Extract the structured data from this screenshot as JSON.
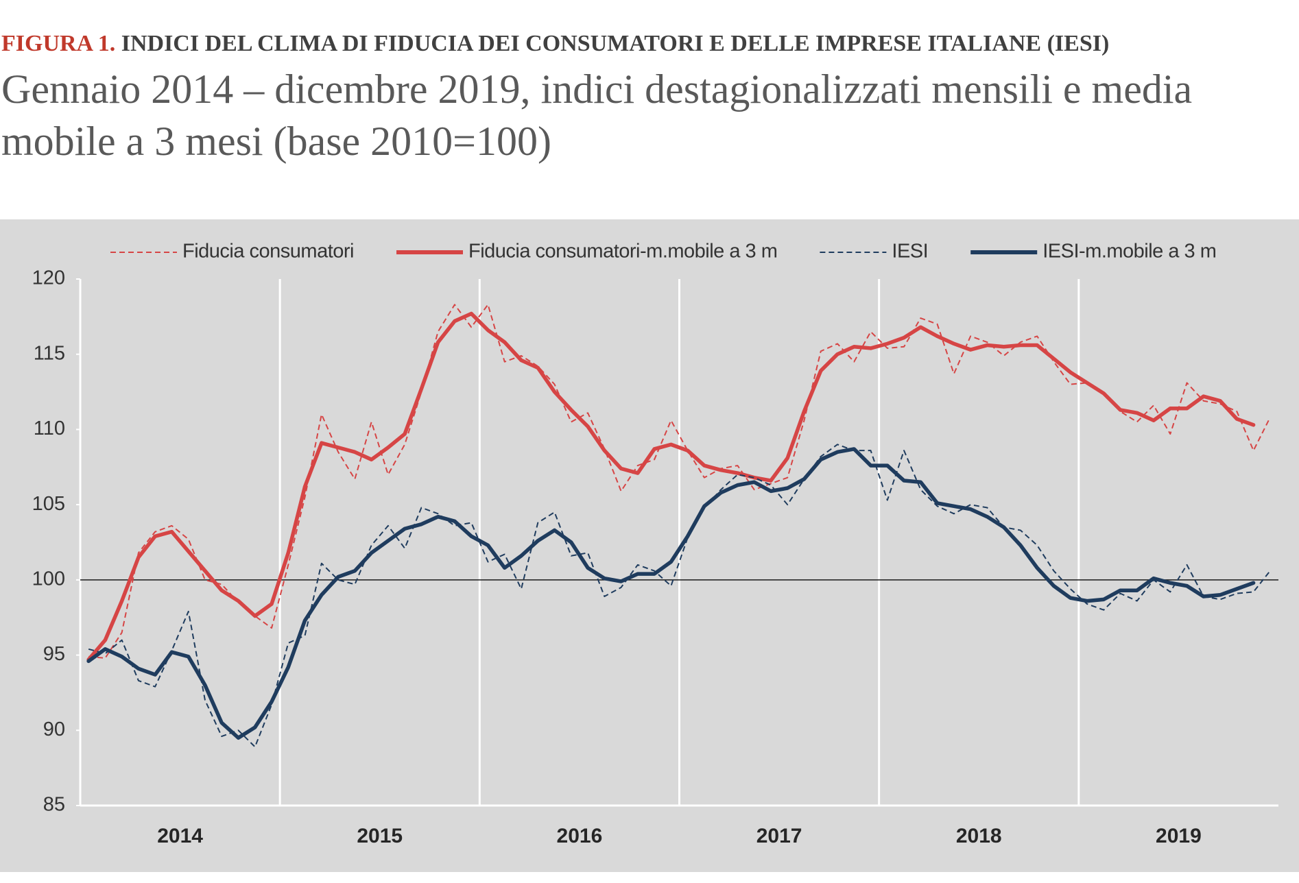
{
  "chart_data": {
    "type": "line",
    "title_prefix": "FIGURA 1.",
    "title": "INDICI DEL CLIMA DI FIDUCIA DEI CONSUMATORI E DELLE IMPRESE ITALIANE (IESI)",
    "subtitle": "Gennaio 2014 – dicembre 2019, indici destagionalizzati mensili e media mobile a 3 mesi (base 2010=100)",
    "categories": [
      null,
      null,
      null,
      null,
      null,
      "2014",
      null,
      null,
      null,
      null,
      null,
      null,
      null,
      null,
      null,
      null,
      null,
      "2015",
      null,
      null,
      null,
      null,
      null,
      null,
      null,
      null,
      null,
      null,
      null,
      "2016",
      null,
      null,
      null,
      null,
      null,
      null,
      null,
      null,
      null,
      null,
      null,
      "2017",
      null,
      null,
      null,
      null,
      null,
      null,
      null,
      null,
      null,
      null,
      null,
      "2018",
      null,
      null,
      null,
      null,
      null,
      null,
      null,
      null,
      null,
      null,
      null,
      "2019",
      null,
      null,
      null,
      null,
      null,
      null
    ],
    "series": [
      {
        "name": "Fiducia consumatori",
        "color": "#d64545",
        "dashed": true,
        "values": [
          94.9,
          94.8,
          96.5,
          101.8,
          103.2,
          103.6,
          102.7,
          100.0,
          99.7,
          98.5,
          97.6,
          96.8,
          101.0,
          105.5,
          111.0,
          108.5,
          106.7,
          110.5,
          107.0,
          109.0,
          112.5,
          116.5,
          118.3,
          116.8,
          118.3,
          114.5,
          114.9,
          114.2,
          113.0,
          110.5,
          111.1,
          108.7,
          105.9,
          107.6,
          108.0,
          110.6,
          108.6,
          106.8,
          107.4,
          107.6,
          106.0,
          106.4,
          106.8,
          110.6,
          115.2,
          115.7,
          114.5,
          116.5,
          115.4,
          115.5,
          117.4,
          117.0,
          113.7,
          116.2,
          115.8,
          114.9,
          115.8,
          116.2,
          114.5,
          113.0,
          113.1,
          112.5,
          111.2,
          110.5,
          111.6,
          109.7,
          113.1,
          111.9,
          111.7,
          111.2,
          108.6,
          110.8
        ]
      },
      {
        "name": "Fiducia consumatori-m.mobile a 3 m",
        "color": "#d64545",
        "dashed": false,
        "values": [
          94.7,
          96.0,
          98.6,
          101.5,
          102.9,
          103.2,
          101.9,
          100.6,
          99.3,
          98.6,
          97.6,
          98.4,
          101.8,
          106.2,
          109.1,
          108.8,
          108.5,
          108.0,
          108.8,
          109.7,
          112.7,
          115.8,
          117.2,
          117.7,
          116.6,
          115.8,
          114.6,
          114.1,
          112.5,
          111.3,
          110.2,
          108.6,
          107.4,
          107.1,
          108.7,
          109.0,
          108.6,
          107.6,
          107.3,
          107.1,
          106.8,
          106.6,
          108.1,
          111.2,
          113.9,
          115.0,
          115.5,
          115.4,
          115.7,
          116.1,
          116.8,
          116.2,
          115.7,
          115.3,
          115.6,
          115.5,
          115.6,
          115.6,
          114.7,
          113.8,
          113.1,
          112.4,
          111.3,
          111.1,
          110.6,
          111.4,
          111.4,
          112.2,
          111.9,
          110.7,
          110.3,
          null
        ]
      },
      {
        "name": "IESI",
        "color": "#1f3c5e",
        "dashed": true,
        "values": [
          95.4,
          95.1,
          96.0,
          93.3,
          92.9,
          95.3,
          97.9,
          92.0,
          89.6,
          90.0,
          88.9,
          91.7,
          95.8,
          96.3,
          101.1,
          100.0,
          99.7,
          102.3,
          103.6,
          102.1,
          104.8,
          104.4,
          103.6,
          103.8,
          101.2,
          101.7,
          99.4,
          103.8,
          104.5,
          101.6,
          101.8,
          98.9,
          99.5,
          101.0,
          100.6,
          99.6,
          102.8,
          104.8,
          106.0,
          107.0,
          106.8,
          106.3,
          105.0,
          106.7,
          108.2,
          109.0,
          108.6,
          108.6,
          105.3,
          108.6,
          106.0,
          104.9,
          104.4,
          105.0,
          104.8,
          103.5,
          103.3,
          102.3,
          100.6,
          99.4,
          98.4,
          98.0,
          99.1,
          98.6,
          100.0,
          99.2,
          101.0,
          98.9,
          98.7,
          99.1,
          99.2,
          100.6
        ]
      },
      {
        "name": "IESI-m.mobile a 3 m",
        "color": "#1f3c5e",
        "dashed": false,
        "values": [
          94.6,
          95.4,
          94.9,
          94.1,
          93.7,
          95.2,
          94.9,
          93.0,
          90.5,
          89.5,
          90.2,
          91.9,
          94.2,
          97.3,
          99.0,
          100.2,
          100.6,
          101.8,
          102.6,
          103.4,
          103.7,
          104.2,
          103.9,
          102.9,
          102.3,
          100.8,
          101.6,
          102.6,
          103.3,
          102.5,
          100.8,
          100.1,
          99.9,
          100.4,
          100.4,
          101.2,
          102.9,
          104.9,
          105.8,
          106.3,
          106.5,
          105.9,
          106.1,
          106.7,
          108.0,
          108.5,
          108.7,
          107.6,
          107.6,
          106.6,
          106.5,
          105.1,
          104.9,
          104.7,
          104.2,
          103.5,
          102.3,
          100.8,
          99.6,
          98.8,
          98.6,
          98.7,
          99.3,
          99.3,
          100.1,
          99.8,
          99.6,
          98.9,
          99.0,
          99.4,
          99.8,
          null
        ]
      }
    ],
    "ylim": [
      85,
      120
    ],
    "yticks": [
      85,
      90,
      95,
      100,
      105,
      110,
      115,
      120
    ],
    "reference_line": 100,
    "legend": "top"
  }
}
